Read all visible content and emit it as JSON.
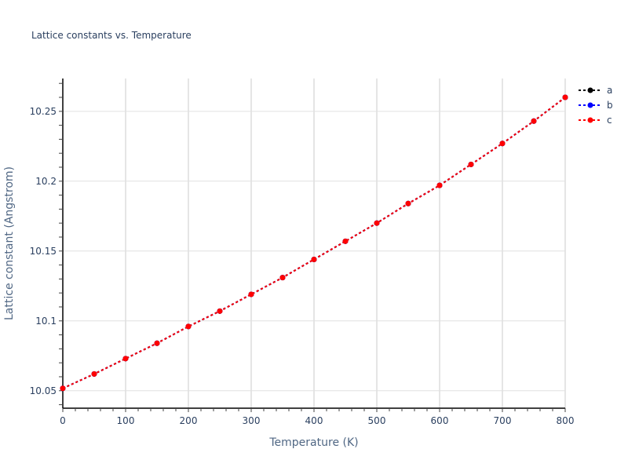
{
  "chart_data": {
    "type": "line",
    "title": "Lattice constants vs. Temperature",
    "xlabel": "Temperature (K)",
    "ylabel": "Lattice constant (Angstrom)",
    "xlim": [
      0,
      800
    ],
    "ylim": [
      10.0375,
      10.2735
    ],
    "x_ticks": [
      0,
      100,
      200,
      300,
      400,
      500,
      600,
      700,
      800
    ],
    "x_tick_labels": [
      "0",
      "100",
      "200",
      "300",
      "400",
      "500",
      "600",
      "700",
      "800"
    ],
    "y_ticks": [
      10.05,
      10.1,
      10.15,
      10.2,
      10.25
    ],
    "y_tick_labels": [
      "10.05",
      "10.1",
      "10.15",
      "10.2",
      "10.25"
    ],
    "grid": true,
    "legend_position": "top-right-outside",
    "x": [
      0,
      50,
      100,
      150,
      200,
      250,
      300,
      350,
      400,
      450,
      500,
      550,
      600,
      650,
      700,
      750,
      800
    ],
    "series": [
      {
        "name": "a",
        "color": "#000000",
        "line_style": "dot",
        "marker": "circle",
        "values": [
          10.0517,
          10.062,
          10.073,
          10.084,
          10.096,
          10.107,
          10.119,
          10.131,
          10.144,
          10.157,
          10.17,
          10.184,
          10.197,
          10.212,
          10.227,
          10.243,
          10.26
        ]
      },
      {
        "name": "b",
        "color": "#0000ff",
        "line_style": "dot",
        "marker": "circle",
        "values": [
          10.0517,
          10.062,
          10.073,
          10.084,
          10.096,
          10.107,
          10.119,
          10.131,
          10.144,
          10.157,
          10.17,
          10.184,
          10.197,
          10.212,
          10.227,
          10.243,
          10.26
        ]
      },
      {
        "name": "c",
        "color": "#ff0000",
        "line_style": "dot",
        "marker": "circle",
        "values": [
          10.0517,
          10.062,
          10.073,
          10.084,
          10.096,
          10.107,
          10.119,
          10.131,
          10.144,
          10.157,
          10.17,
          10.184,
          10.197,
          10.212,
          10.227,
          10.243,
          10.26
        ]
      }
    ]
  }
}
